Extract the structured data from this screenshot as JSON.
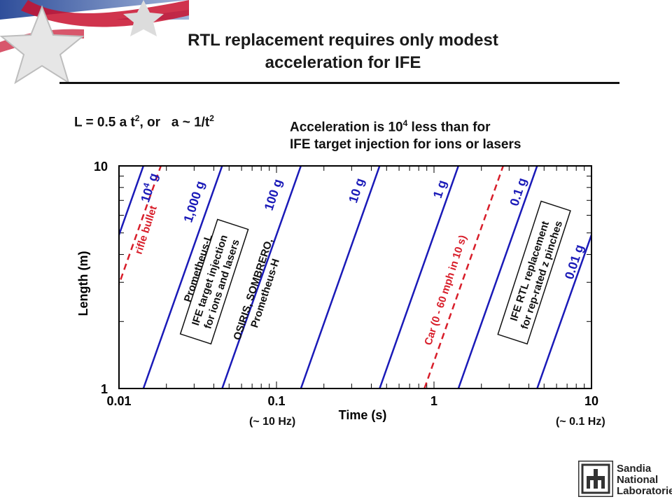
{
  "title_line1": "RTL replacement requires only modest",
  "title_line2": "acceleration for IFE",
  "formula": {
    "lhs": "L = 0.5 a t",
    "exp1": "2",
    "mid": ", or   a ~ 1/t",
    "exp2": "2"
  },
  "accel_note": {
    "line1_a": "Acceleration is 10",
    "line1_exp": "4",
    "line1_b": " less than for",
    "line2": "IFE target injection for ions or lasers"
  },
  "bottom_labels": {
    "left": "(~ 10 Hz)",
    "right": "(~ 0.1 Hz)"
  },
  "sandia": {
    "line1": "Sandia",
    "line2": "National",
    "line3": "Laboratories"
  },
  "colors": {
    "accel_line": "#1a1ab8",
    "reference_line": "#d81e2a",
    "annotation_text": "#111111"
  },
  "chart_data": {
    "type": "line",
    "xscale": "log",
    "yscale": "log",
    "xlim": [
      0.01,
      10
    ],
    "ylim": [
      1,
      10
    ],
    "xlabel": "Time (s)",
    "ylabel": "Length (m)",
    "xticks": [
      {
        "value": 0.01,
        "label": "0.01"
      },
      {
        "value": 0.1,
        "label": "0.1"
      },
      {
        "value": 1,
        "label": "1"
      },
      {
        "value": 10,
        "label": "10"
      }
    ],
    "yticks": [
      {
        "value": 1,
        "label": "1"
      },
      {
        "value": 10,
        "label": "10"
      }
    ],
    "series": [
      {
        "name": "10^4 g",
        "label_base": "10",
        "label_exp": "4",
        "label_suffix": " g",
        "accel": 10000,
        "style": "solid",
        "color": "#1a1ab8"
      },
      {
        "name": "1,000 g",
        "label": "1,000 g",
        "accel": 1000,
        "style": "solid",
        "color": "#1a1ab8"
      },
      {
        "name": "100 g",
        "label": "100 g",
        "accel": 100,
        "style": "solid",
        "color": "#1a1ab8"
      },
      {
        "name": "10 g",
        "label": "10 g",
        "accel": 10,
        "style": "solid",
        "color": "#1a1ab8"
      },
      {
        "name": "1 g",
        "label": "1 g",
        "accel": 1,
        "style": "solid",
        "color": "#1a1ab8"
      },
      {
        "name": "0.1 g",
        "label": "0.1 g",
        "accel": 0.1,
        "style": "solid",
        "color": "#1a1ab8"
      },
      {
        "name": "0.01 g",
        "label": "0.01 g",
        "accel": 0.01,
        "style": "solid",
        "color": "#1a1ab8"
      },
      {
        "name": "rifle bullet",
        "label": "rifle bullet",
        "accel": 6000,
        "style": "dashed",
        "color": "#d81e2a"
      },
      {
        "name": "Car (0 - 60 mph in 10 s)",
        "label": "Car (0 - 60 mph in 10 s)",
        "accel": 0.27,
        "style": "dashed",
        "color": "#d81e2a"
      }
    ],
    "annotations": [
      {
        "name": "prometheus-l",
        "lines": [
          "Prometheus-L"
        ],
        "boxed": false
      },
      {
        "name": "ife-target-injection",
        "lines": [
          "IFE target injection",
          "for ions and lasers"
        ],
        "boxed": true
      },
      {
        "name": "osiris-sombrero",
        "lines": [
          "OSIRIS, SOMBRERO,",
          "Prometheus-H"
        ],
        "boxed": false
      },
      {
        "name": "ife-rtl-replacement",
        "lines": [
          "IFE RTL replacement",
          "for rep-rated z pinches"
        ],
        "boxed": true
      }
    ]
  }
}
